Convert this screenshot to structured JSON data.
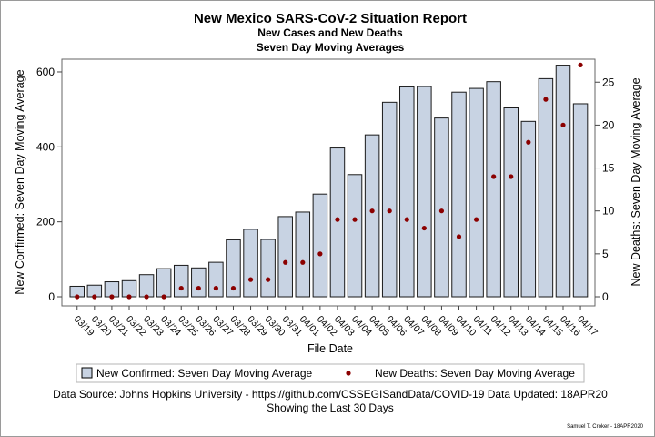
{
  "chart_data": {
    "type": "bar",
    "title": "New Mexico SARS-CoV-2 Situation Report",
    "subtitle_1": "New Cases and New Deaths",
    "subtitle_2": "Seven Day Moving Averages",
    "xlabel": "File Date",
    "ylabel_left": "New Confirmed: Seven Day Moving Average",
    "ylabel_right": "New Deaths: Seven Day Moving Average",
    "ylim_left": [
      0,
      620
    ],
    "ylim_right": [
      0,
      27
    ],
    "yticks_left": [
      "0",
      "200",
      "400",
      "600"
    ],
    "yticks_right": [
      "0",
      "5",
      "10",
      "15",
      "20",
      "25"
    ],
    "categories": [
      "03/19",
      "03/20",
      "03/21",
      "03/22",
      "03/23",
      "03/24",
      "03/25",
      "03/26",
      "03/27",
      "03/28",
      "03/29",
      "03/30",
      "03/31",
      "04/01",
      "04/02",
      "04/03",
      "04/04",
      "04/05",
      "04/06",
      "04/07",
      "04/08",
      "04/09",
      "04/10",
      "04/11",
      "04/12",
      "04/13",
      "04/14",
      "04/15",
      "04/16",
      "04/17"
    ],
    "series": [
      {
        "name": "New Confirmed: Seven Day Moving Average",
        "kind": "bar",
        "axis": "left",
        "color": "#c8d3e3",
        "values": [
          28,
          31,
          40,
          43,
          59,
          75,
          84,
          77,
          92,
          152,
          180,
          153,
          214,
          226,
          274,
          397,
          326,
          432,
          519,
          560,
          561,
          477,
          546,
          556,
          574,
          504,
          468,
          582,
          618,
          515
        ]
      },
      {
        "name": "New Deaths: Seven Day Moving Average",
        "kind": "scatter",
        "axis": "right",
        "color": "#8b0000",
        "values": [
          0,
          0,
          0,
          0,
          0,
          0,
          1,
          1,
          1,
          1,
          2,
          2,
          4,
          4,
          5,
          9,
          9,
          10,
          10,
          9,
          8,
          10,
          7,
          9,
          14,
          14,
          18,
          23,
          20,
          27
        ]
      }
    ],
    "legend_position": "bottom",
    "grid": false
  },
  "footer": {
    "source": "Data Source: Johns Hopkins University - https://github.com/CSSEGISandData/COVID-19 Data Updated: 18APR20",
    "period": "Showing the Last 30 Days",
    "credit": "Samuel T. Croker - 18APR2020"
  }
}
